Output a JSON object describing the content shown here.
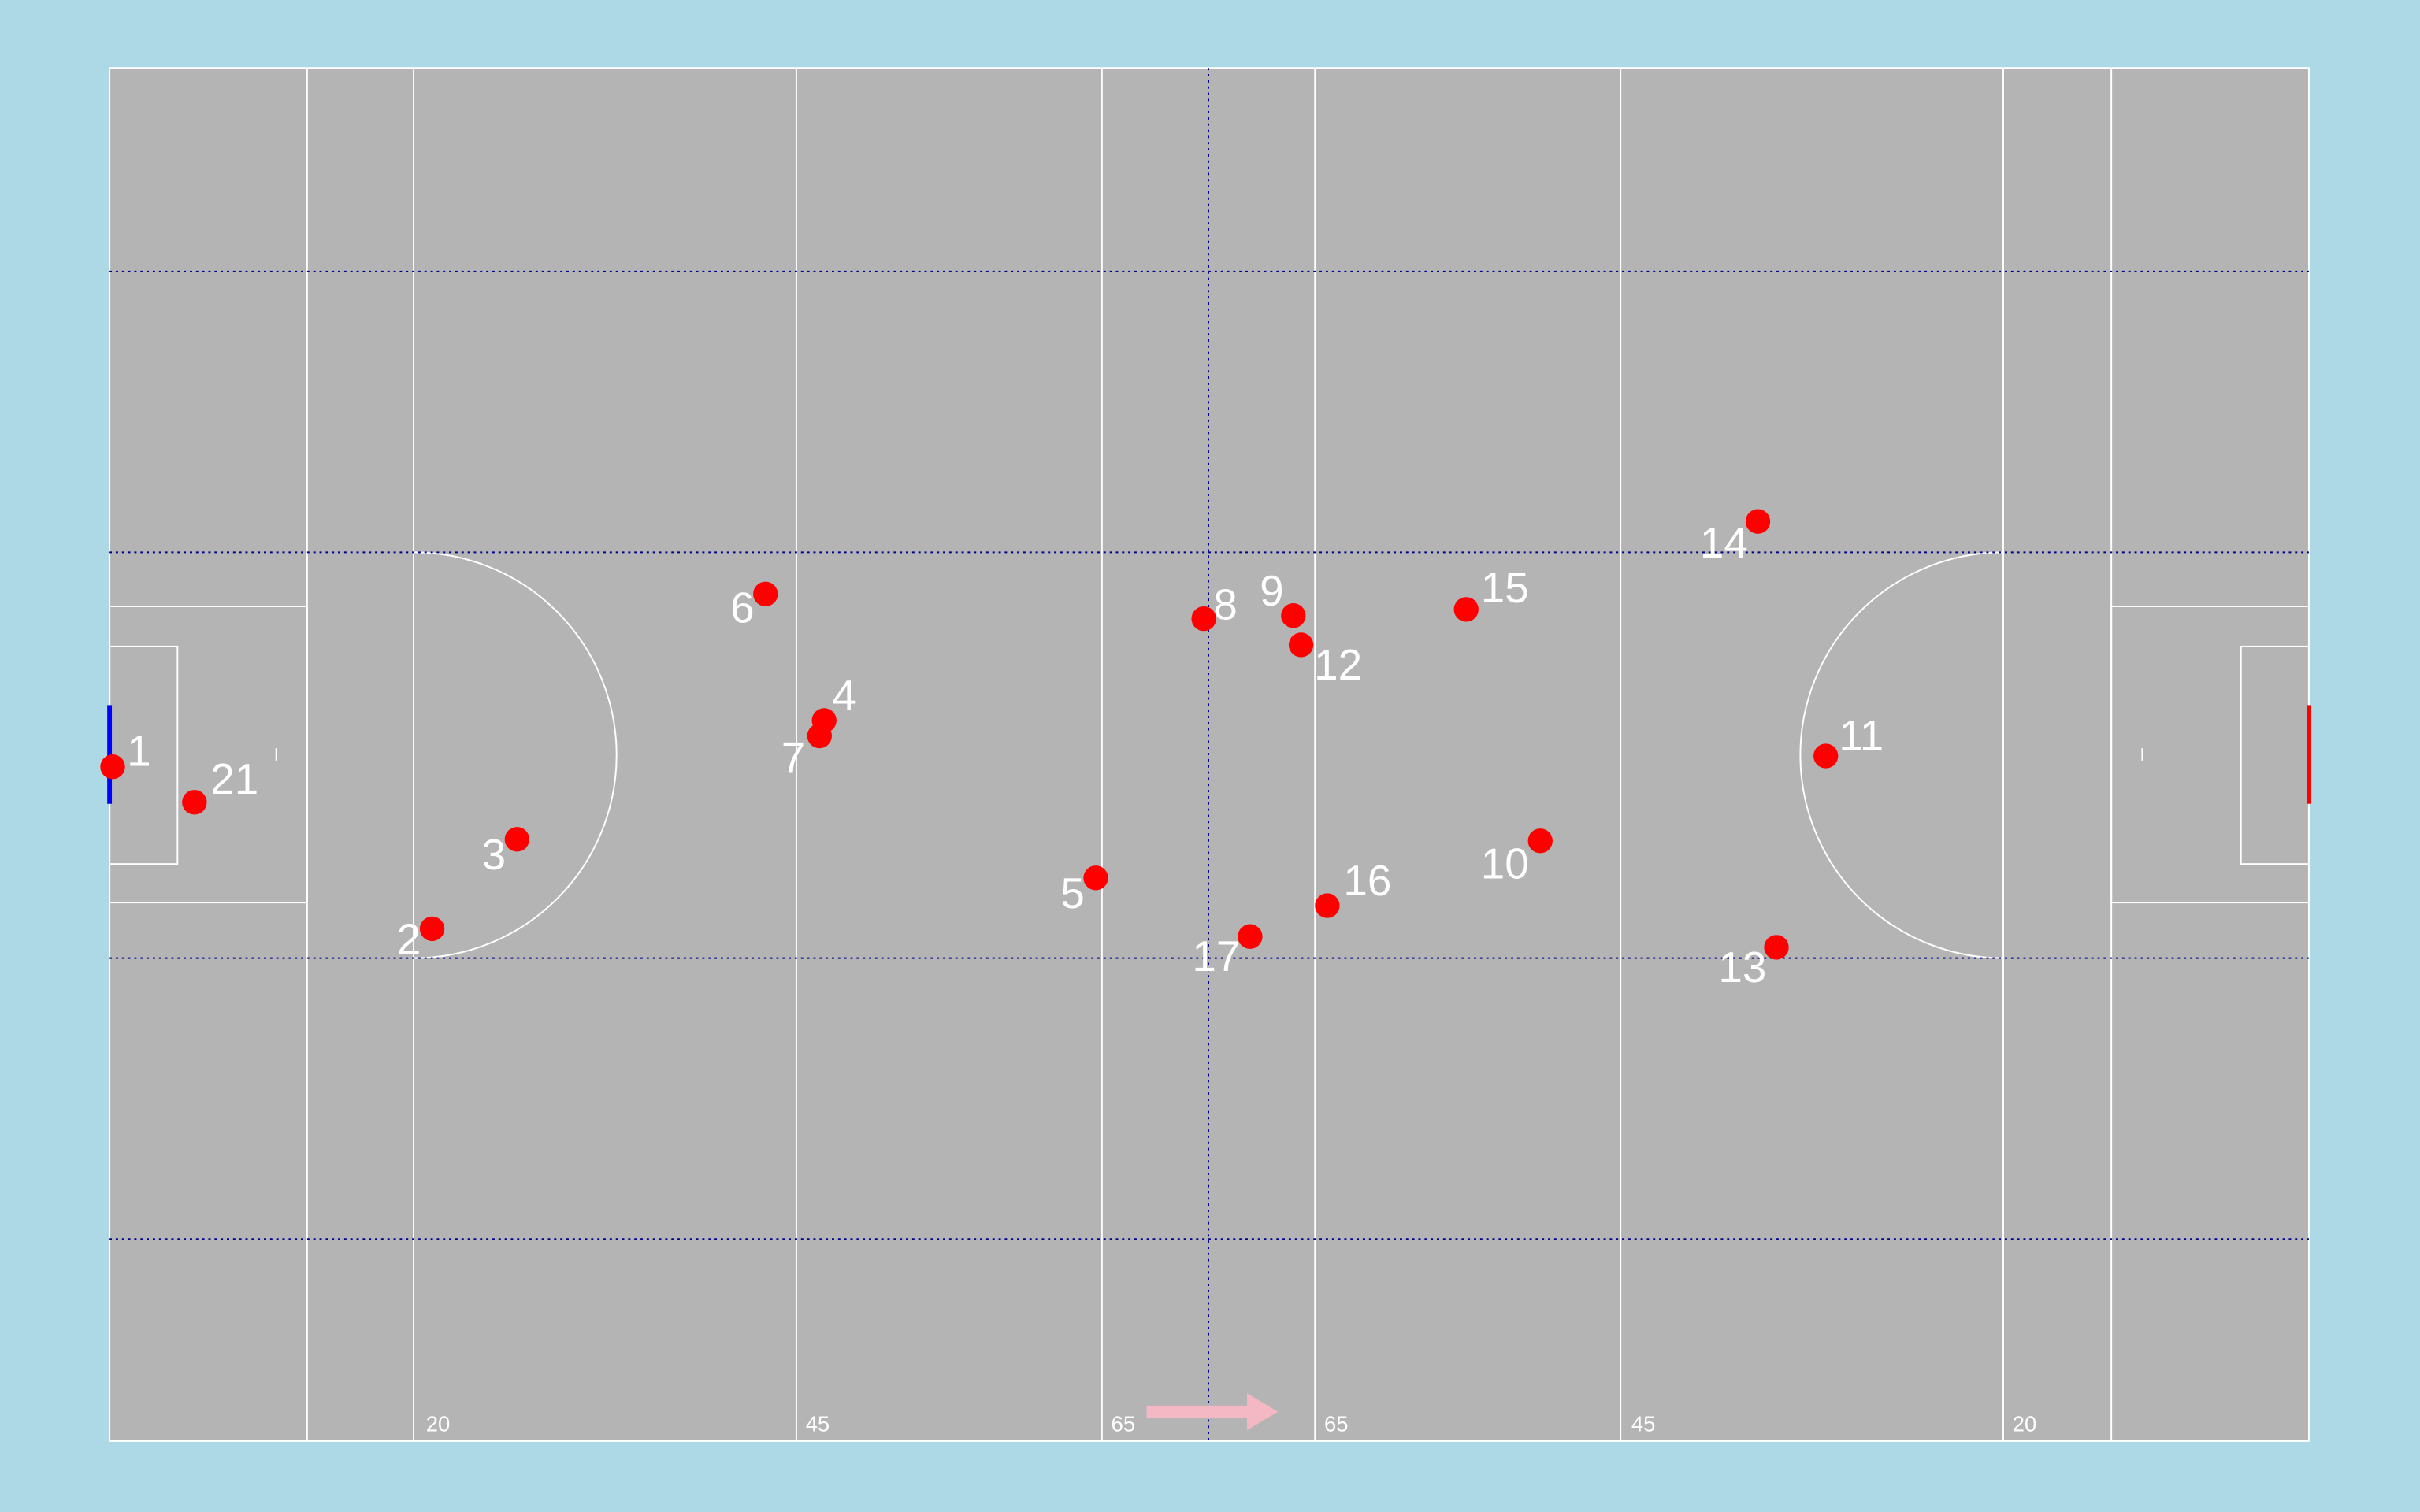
{
  "pitch": {
    "line_labels": [
      "20",
      "45",
      "65",
      "65",
      "45",
      "20"
    ]
  },
  "players": [
    "1",
    "2",
    "3",
    "4",
    "5",
    "6",
    "7",
    "8",
    "9",
    "10",
    "11",
    "12",
    "13",
    "14",
    "15",
    "16",
    "17",
    "21"
  ]
}
